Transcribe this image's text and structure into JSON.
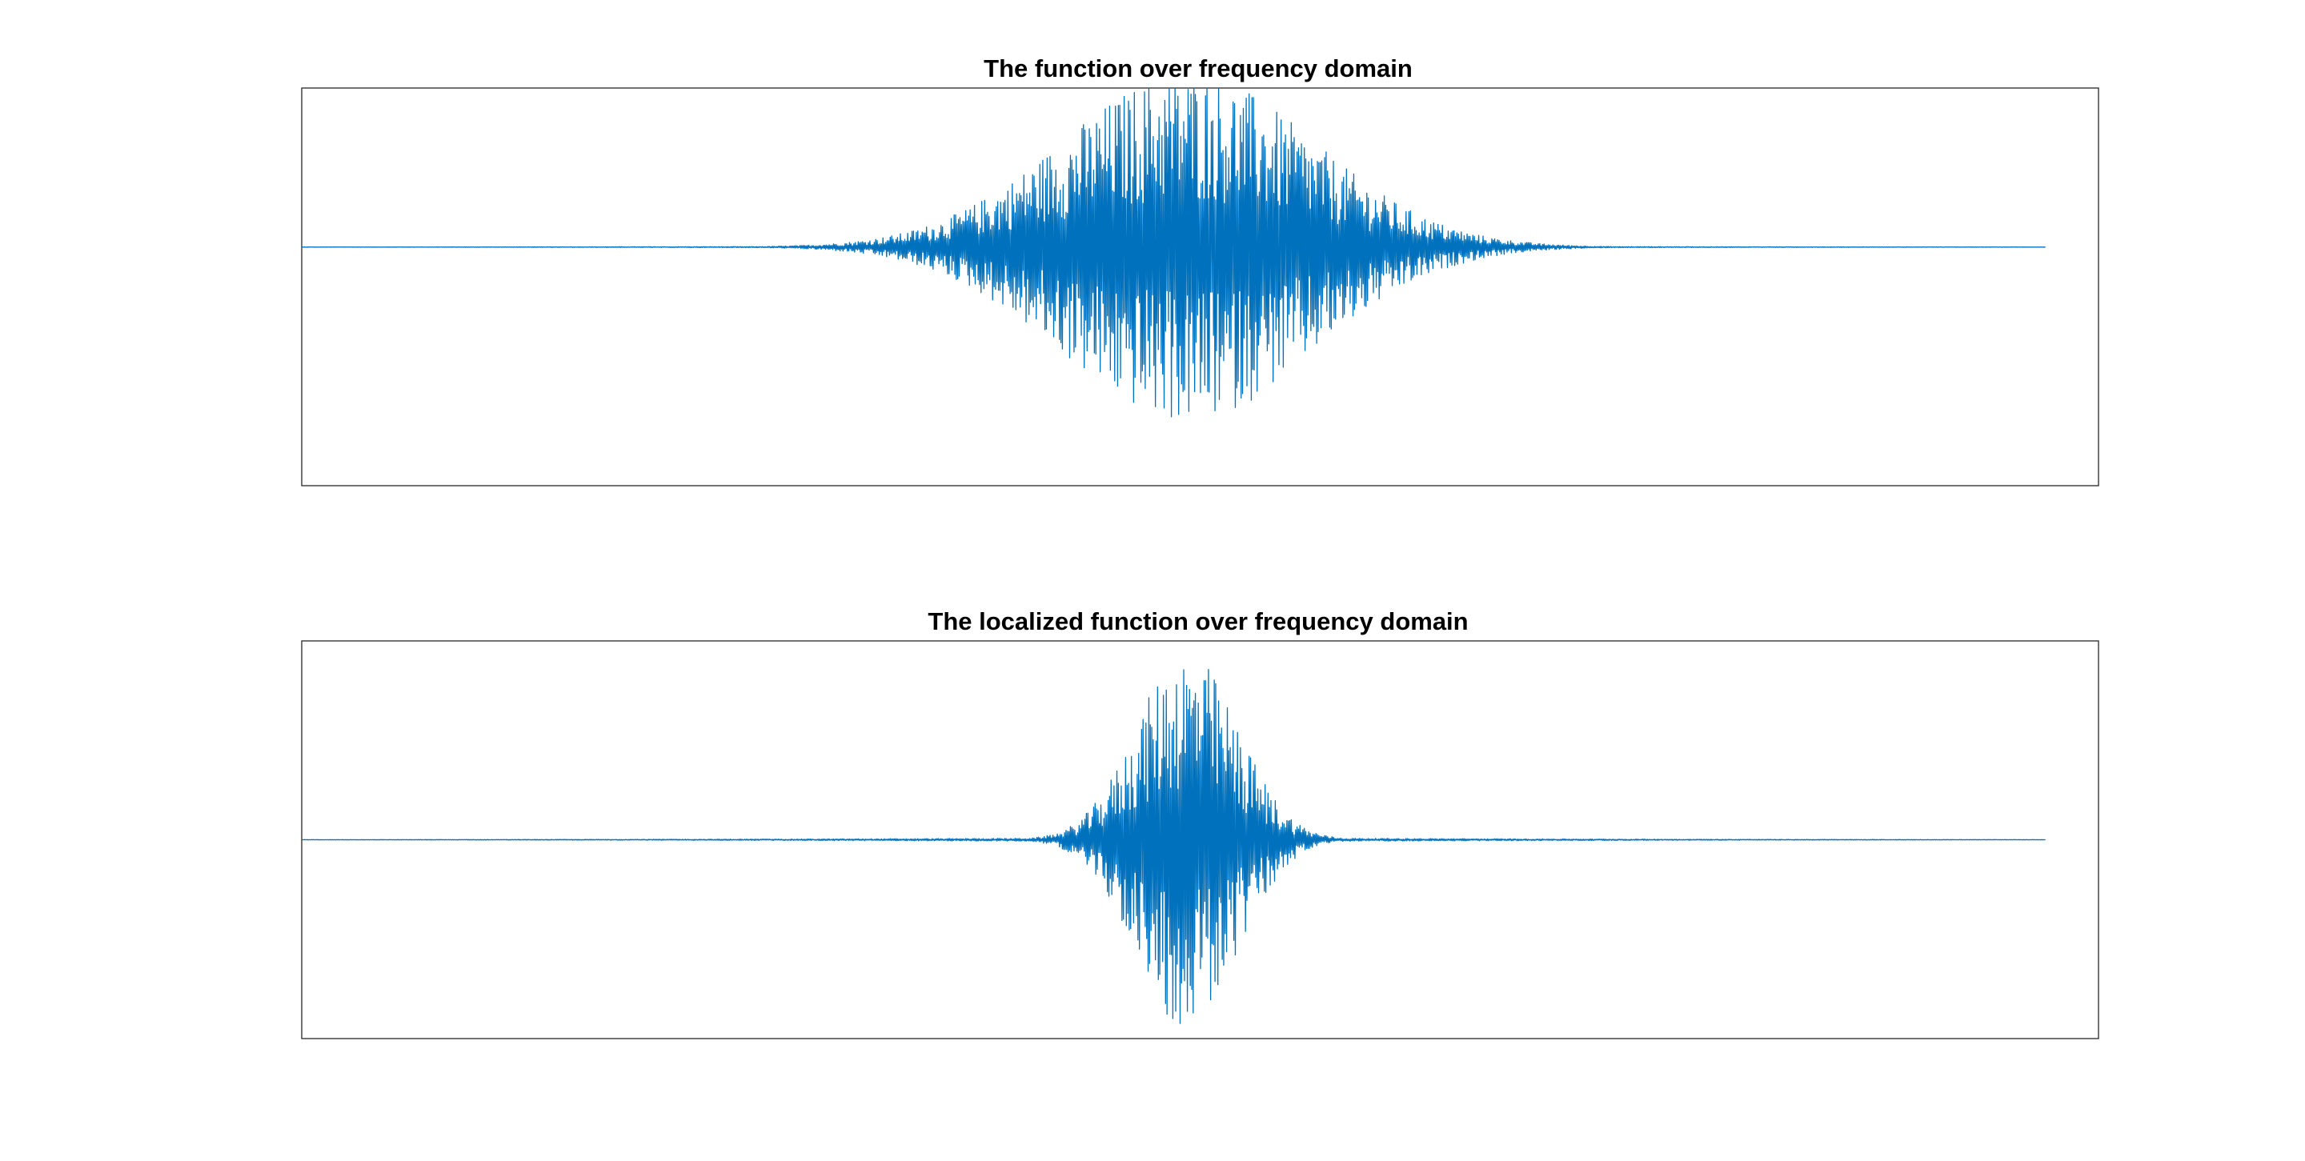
{
  "chart_data": [
    {
      "type": "line",
      "title": "The function over frequency domain",
      "xlabel": "",
      "ylabel": "",
      "axis_ticks": "off",
      "grid": false,
      "line_color": "#0072BD",
      "ylim": [
        -1.5,
        1.0
      ],
      "series": [
        {
          "shape": "damped oscillation burst centered at x = 0",
          "peak_amplitude": 1.1,
          "envelope_half_width": 0.3,
          "x_start": -1.0,
          "x_end": 0.97,
          "y_baseline": 0
        }
      ],
      "xlim": [
        -1.0,
        1.03
      ]
    },
    {
      "type": "line",
      "title": "The localized function over frequency domain",
      "xlabel": "",
      "ylabel": "",
      "axis_ticks": "off",
      "grid": false,
      "line_color": "#0072BD",
      "ylim": [
        -1.0,
        1.0
      ],
      "series": [
        {
          "shape": "damped oscillation burst centered at x = 0",
          "peak_amplitude": 0.95,
          "envelope_half_width": 0.12,
          "x_start": -1.0,
          "x_end": 0.97,
          "y_baseline": 0
        }
      ],
      "xlim": [
        -1.0,
        1.03
      ]
    }
  ]
}
